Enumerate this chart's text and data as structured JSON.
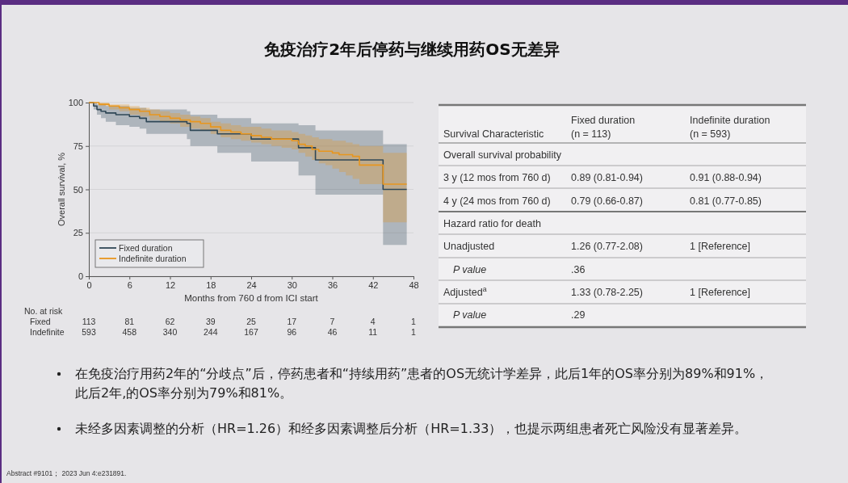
{
  "chart_data": [
    {
      "type": "step",
      "xlabel": "Months from 760 d from ICI start",
      "ylabel": "Overall survival, %",
      "xlim": [
        0,
        48
      ],
      "ylim": [
        0,
        100
      ],
      "xticks": [
        0,
        6,
        12,
        18,
        24,
        30,
        36,
        42,
        48
      ],
      "yticks": [
        0,
        25,
        50,
        75,
        100
      ],
      "grid": "y",
      "legend": "bottom left",
      "series": [
        {
          "name": "Fixed duration",
          "color": "#2f4756",
          "x": [
            0,
            0.7,
            1.2,
            1.8,
            2.5,
            4,
            6,
            7.5,
            8.5,
            14.5,
            15,
            19,
            24,
            31,
            33.5,
            43.5,
            47
          ],
          "values": [
            100,
            98,
            96,
            95,
            94,
            93,
            92,
            91,
            89,
            88,
            84,
            82,
            79,
            74,
            67,
            50,
            50
          ],
          "lower": [
            100,
            96,
            93,
            91,
            89,
            87,
            86,
            85,
            82,
            79,
            75,
            71,
            66,
            58,
            47,
            18,
            18
          ],
          "upper": [
            100,
            100,
            99,
            99,
            98,
            98,
            97,
            97,
            96,
            95,
            93,
            91,
            88,
            87,
            84,
            76,
            76
          ]
        },
        {
          "name": "Indefinite duration",
          "color": "#e8961e",
          "x": [
            0,
            1.5,
            3,
            4.5,
            6,
            7.5,
            9,
            10.5,
            12,
            13.5,
            15,
            16.5,
            18,
            19.5,
            21,
            22.5,
            24,
            25.5,
            27,
            28.5,
            30,
            31,
            32,
            33,
            34,
            35,
            36,
            37,
            38,
            39,
            40,
            43.5,
            47
          ],
          "values": [
            100,
            99,
            98,
            97,
            96,
            95,
            93,
            92,
            91,
            90,
            89,
            88,
            86,
            84,
            83,
            82,
            81,
            80,
            79,
            79,
            78,
            76,
            75,
            73,
            72,
            72,
            71,
            70,
            70,
            69,
            64,
            53,
            53
          ],
          "lower": [
            100,
            98,
            96,
            95,
            93,
            92,
            90,
            89,
            88,
            86,
            85,
            84,
            82,
            80,
            79,
            78,
            77,
            76,
            75,
            74,
            73,
            71,
            69,
            67,
            65,
            64,
            62,
            60,
            58,
            56,
            53,
            31,
            31
          ],
          "upper": [
            100,
            100,
            99,
            99,
            98,
            97,
            96,
            95,
            94,
            93,
            92,
            91,
            89,
            88,
            87,
            86,
            86,
            85,
            84,
            84,
            83,
            82,
            81,
            80,
            79,
            79,
            78,
            78,
            77,
            76,
            75,
            71,
            71
          ]
        }
      ],
      "annotations": [
        "No. at risk",
        "Fixed",
        "113",
        "81",
        "62",
        "39",
        "25",
        "17",
        "7",
        "4",
        "1",
        "Indefinite",
        "593",
        "458",
        "340",
        "244",
        "167",
        "96",
        "46",
        "11",
        "1"
      ]
    },
    {
      "type": "other",
      "title": "免疫治疗2年后停药与继续用药OS无差异",
      "annotations": [
        "Survival Characteristic",
        "Fixed duration",
        "(n = 113)",
        "Indefinite duration",
        "(n = 593)",
        "Overall survival probability",
        "3 y (12 mos from 760 d)",
        "0.89 (0.81-0.94)",
        "0.91 (0.88-0.94)",
        "4 y (24 mos from 760 d)",
        "0.79 (0.66-0.87)",
        "0.81 (0.77-0.85)",
        "Hazard ratio for death",
        "Unadjusted",
        "1.26 (0.77-2.08)",
        "1 [Reference]",
        "P value",
        ".36",
        "Adjusted$^{a}$",
        "1.33 (0.78-2.25)",
        "1 [Reference]",
        "P value",
        ".29",
        "在免疫治疗用药2年的“分歧点”后，停药患者和“持续用药”患者的OS无统计学差异，此后1年的OS率分别为89%和91%，此后2年,的OS率分别为79%和81%。",
        "未经多因素调整的分析（HR=1.26）和经多因素调整后分析（HR=1.33），也提示两组患者死亡风险没有显著差异。",
        "Abstract #9101； 2023 Jun 4:e231891."
      ]
    }
  ]
}
